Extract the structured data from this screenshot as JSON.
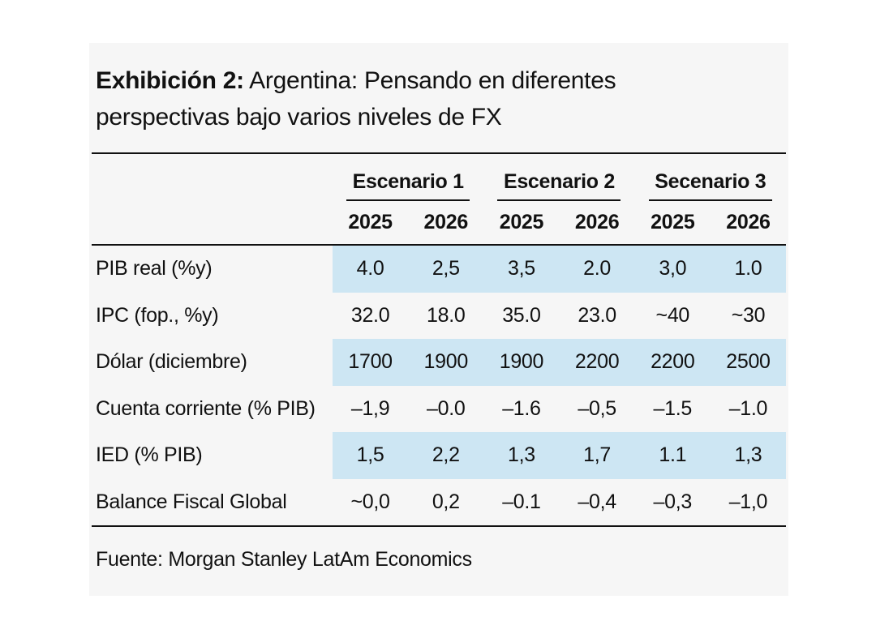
{
  "title": {
    "prefix": "Exhibición 2:",
    "rest": " Argentina: Pensando en diferentes perspectivas bajo varios niveles de FX"
  },
  "chart_data": {
    "type": "table",
    "title": "Exhibición 2: Argentina: Pensando en diferentes perspectivas bajo varios niveles de FX",
    "column_groups": [
      {
        "label": "Escenario 1"
      },
      {
        "label": "Escenario 2"
      },
      {
        "label": "Secenario 3"
      }
    ],
    "columns": [
      "2025",
      "2026",
      "2025",
      "2026",
      "2025",
      "2026"
    ],
    "rows": [
      {
        "label": "PIB real (%y)",
        "highlighted": true,
        "values": [
          "4.0",
          "2,5",
          "3,5",
          "2.0",
          "3,0",
          "1.0"
        ]
      },
      {
        "label": "IPC (fop., %y)",
        "highlighted": false,
        "values": [
          "32.0",
          "18.0",
          "35.0",
          "23.0",
          "~40",
          "~30"
        ]
      },
      {
        "label": "Dólar (diciembre)",
        "highlighted": true,
        "values": [
          "1700",
          "1900",
          "1900",
          "2200",
          "2200",
          "2500"
        ]
      },
      {
        "label": "Cuenta corriente (% PIB)",
        "highlighted": false,
        "values": [
          "–1,9",
          "–0.0",
          "–1.6",
          "–0,5",
          "–1.5",
          "–1.0"
        ]
      },
      {
        "label": "IED (% PIB)",
        "highlighted": true,
        "values": [
          "1,5",
          "2,2",
          "1,3",
          "1,7",
          "1.1",
          "1,3"
        ]
      },
      {
        "label": "Balance Fiscal Global",
        "highlighted": false,
        "values": [
          "~0,0",
          "0,2",
          "–0.1",
          "–0,4",
          "–0,3",
          "–1,0"
        ]
      }
    ],
    "source": "Fuente: Morgan Stanley LatAm Economics"
  },
  "colors": {
    "highlight": "#cde6f3",
    "panel_bg": "#f6f6f6",
    "text": "#111111",
    "line": "#111111",
    "page_bg": "#ffffff"
  }
}
